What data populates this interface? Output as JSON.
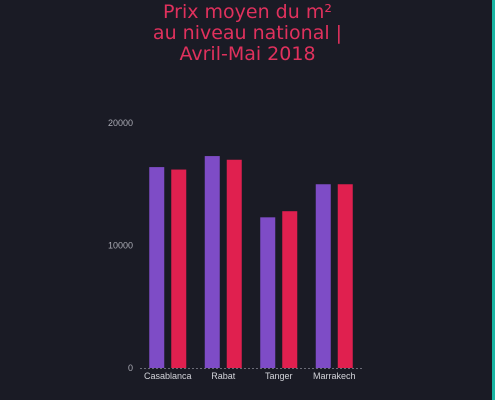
{
  "chart_data": {
    "type": "bar",
    "title_lines": [
      "Prix moyen du m²",
      "au niveau national |",
      "Avril-Mai 2018"
    ],
    "categories": [
      "Casablanca",
      "Rabat",
      "Tanger",
      "Marrakech"
    ],
    "series": [
      {
        "color": "#7e4cc6",
        "values": [
          16400,
          17300,
          12300,
          15000
        ]
      },
      {
        "color": "#e0204f",
        "values": [
          16200,
          17000,
          12800,
          15000
        ]
      }
    ],
    "yticks": [
      0,
      10000,
      20000
    ],
    "ylim": [
      0,
      20000
    ],
    "grid": false,
    "legend": "none",
    "colors": {
      "background": "#1a1b25",
      "title": "#e0315d",
      "axis": "#6b6c78",
      "accent_border": "#19b6a4"
    }
  }
}
